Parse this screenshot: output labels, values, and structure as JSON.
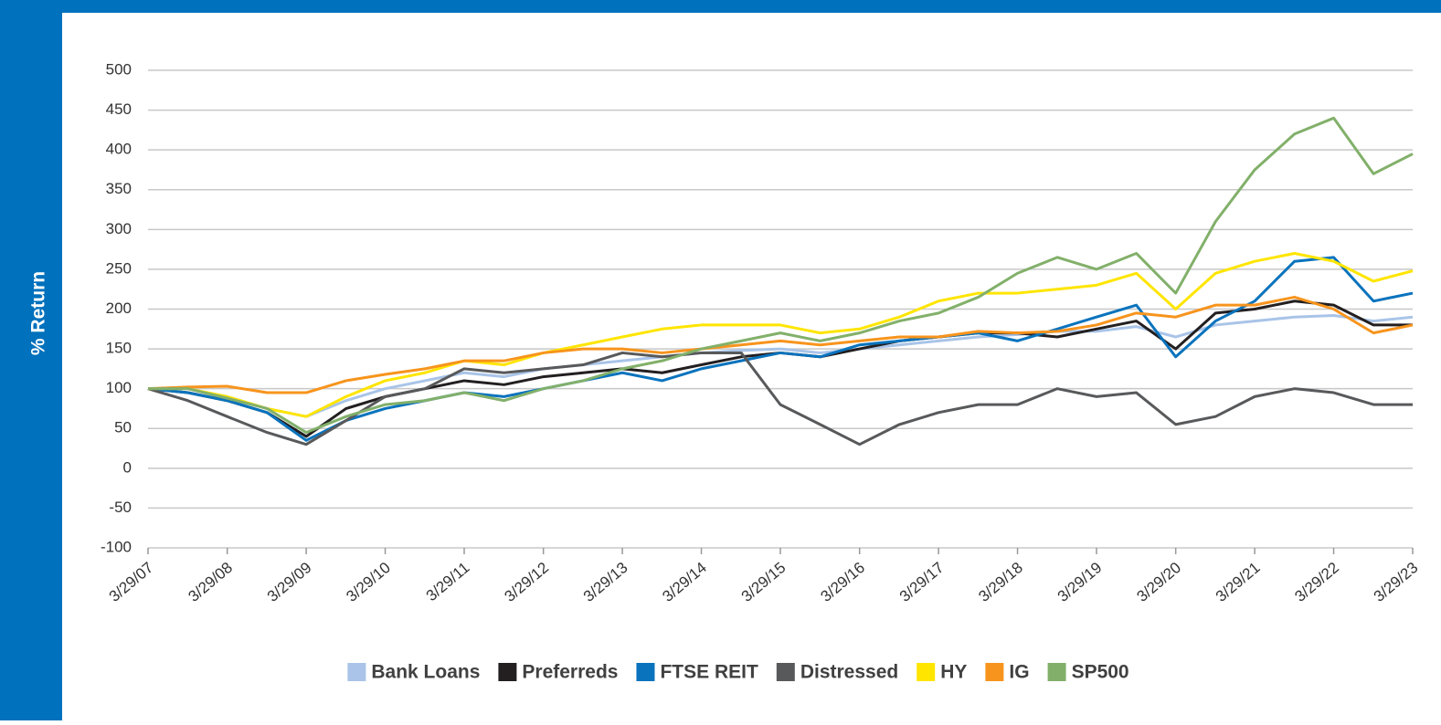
{
  "chart_data": {
    "type": "line",
    "y_label": "% Return",
    "x": [
      "3/29/07",
      "9/29/07",
      "3/29/08",
      "9/29/08",
      "3/29/09",
      "9/29/09",
      "3/29/10",
      "9/29/10",
      "3/29/11",
      "9/29/11",
      "3/29/12",
      "9/29/12",
      "3/29/13",
      "9/29/13",
      "3/29/14",
      "9/29/14",
      "3/29/15",
      "9/29/15",
      "3/29/16",
      "9/29/16",
      "3/29/17",
      "9/29/17",
      "3/29/18",
      "9/29/18",
      "3/29/19",
      "9/29/19",
      "3/29/20",
      "9/29/20",
      "3/29/21",
      "9/29/21",
      "3/29/22",
      "9/29/22",
      "3/29/23"
    ],
    "xlim": [
      "3/29/07",
      "3/29/23"
    ],
    "xticks": [
      "3/29/07",
      "3/29/08",
      "3/29/09",
      "3/29/10",
      "3/29/11",
      "3/29/12",
      "3/29/13",
      "3/29/14",
      "3/29/15",
      "3/29/16",
      "3/29/17",
      "3/29/18",
      "3/29/19",
      "3/29/20",
      "3/29/21",
      "3/29/22",
      "3/29/23"
    ],
    "ylim": [
      -100,
      500
    ],
    "yticks": [
      -100,
      -50,
      0,
      50,
      100,
      150,
      200,
      250,
      300,
      350,
      400,
      450,
      500
    ],
    "grid": true,
    "series": [
      {
        "name": "Bank Loans",
        "color": "#a9c4e8",
        "values": [
          100,
          100,
          90,
          75,
          65,
          85,
          100,
          110,
          120,
          115,
          125,
          130,
          135,
          140,
          145,
          148,
          150,
          145,
          150,
          155,
          160,
          165,
          168,
          172,
          172,
          178,
          165,
          180,
          185,
          190,
          192,
          185,
          190
        ]
      },
      {
        "name": "Preferreds",
        "color": "#231f20",
        "values": [
          100,
          95,
          85,
          70,
          40,
          75,
          90,
          100,
          110,
          105,
          115,
          120,
          125,
          120,
          130,
          140,
          145,
          140,
          150,
          160,
          165,
          170,
          170,
          165,
          175,
          185,
          150,
          195,
          200,
          210,
          205,
          180,
          180
        ]
      },
      {
        "name": "FTSE REIT",
        "color": "#0a73bd",
        "values": [
          100,
          95,
          85,
          70,
          35,
          60,
          75,
          85,
          95,
          90,
          100,
          110,
          120,
          110,
          125,
          135,
          145,
          140,
          155,
          160,
          165,
          170,
          160,
          175,
          190,
          205,
          140,
          185,
          210,
          260,
          265,
          210,
          220
        ]
      },
      {
        "name": "Distressed",
        "color": "#58595b",
        "values": [
          100,
          85,
          65,
          45,
          30,
          60,
          90,
          100,
          125,
          120,
          125,
          130,
          145,
          140,
          145,
          145,
          80,
          55,
          30,
          55,
          70,
          80,
          80,
          100,
          90,
          95,
          55,
          65,
          90,
          100,
          95,
          80,
          80
        ]
      },
      {
        "name": "HY",
        "color": "#ffe500",
        "values": [
          100,
          100,
          90,
          75,
          65,
          90,
          110,
          120,
          135,
          130,
          145,
          155,
          165,
          175,
          180,
          180,
          180,
          170,
          175,
          190,
          210,
          220,
          220,
          225,
          230,
          245,
          200,
          245,
          260,
          270,
          260,
          235,
          248
        ]
      },
      {
        "name": "IG",
        "color": "#f7941d",
        "values": [
          100,
          102,
          103,
          95,
          95,
          110,
          118,
          125,
          135,
          135,
          145,
          150,
          150,
          145,
          150,
          155,
          160,
          155,
          160,
          165,
          165,
          172,
          170,
          172,
          180,
          195,
          190,
          205,
          205,
          215,
          200,
          170,
          180
        ]
      },
      {
        "name": "SP500",
        "color": "#82b06a",
        "values": [
          100,
          100,
          88,
          75,
          45,
          65,
          80,
          85,
          95,
          85,
          100,
          110,
          125,
          135,
          150,
          160,
          170,
          160,
          170,
          185,
          195,
          215,
          245,
          265,
          250,
          270,
          220,
          310,
          375,
          420,
          440,
          370,
          395
        ]
      }
    ]
  }
}
